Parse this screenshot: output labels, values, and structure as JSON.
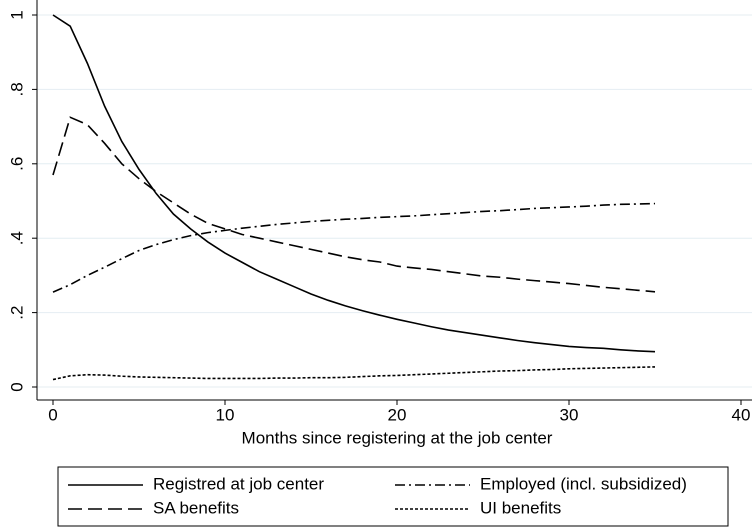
{
  "chart_data": {
    "type": "line",
    "xlabel": "Months since registering at the job center",
    "x": [
      0,
      1,
      2,
      3,
      4,
      5,
      6,
      7,
      8,
      9,
      10,
      11,
      12,
      13,
      14,
      15,
      16,
      17,
      18,
      19,
      20,
      21,
      22,
      23,
      24,
      25,
      26,
      27,
      28,
      29,
      30,
      31,
      32,
      33,
      34,
      35
    ],
    "series": [
      {
        "name": "Registred at job center",
        "color": "#000000",
        "dash": "none",
        "values": [
          1.0,
          0.97,
          0.87,
          0.755,
          0.66,
          0.585,
          0.52,
          0.465,
          0.425,
          0.39,
          0.36,
          0.335,
          0.31,
          0.29,
          0.27,
          0.25,
          0.233,
          0.218,
          0.205,
          0.193,
          0.182,
          0.172,
          0.162,
          0.153,
          0.146,
          0.139,
          0.132,
          0.125,
          0.119,
          0.114,
          0.109,
          0.106,
          0.104,
          0.1,
          0.097,
          0.095
        ]
      },
      {
        "name": "Employed (incl. subsidized)",
        "color": "#000000",
        "dash": "10 4 2 4",
        "values": [
          0.255,
          0.275,
          0.3,
          0.322,
          0.345,
          0.367,
          0.383,
          0.396,
          0.407,
          0.415,
          0.421,
          0.427,
          0.432,
          0.437,
          0.441,
          0.445,
          0.448,
          0.451,
          0.453,
          0.456,
          0.458,
          0.46,
          0.463,
          0.466,
          0.469,
          0.472,
          0.474,
          0.477,
          0.48,
          0.482,
          0.484,
          0.486,
          0.489,
          0.491,
          0.492,
          0.493
        ]
      },
      {
        "name": "SA benefits",
        "color": "#000000",
        "dash": "14 6",
        "values": [
          0.57,
          0.725,
          0.705,
          0.655,
          0.6,
          0.56,
          0.525,
          0.495,
          0.465,
          0.44,
          0.425,
          0.41,
          0.4,
          0.39,
          0.38,
          0.37,
          0.36,
          0.35,
          0.342,
          0.336,
          0.325,
          0.32,
          0.316,
          0.31,
          0.304,
          0.298,
          0.295,
          0.29,
          0.286,
          0.282,
          0.278,
          0.273,
          0.268,
          0.264,
          0.26,
          0.256
        ]
      },
      {
        "name": "UI benefits",
        "color": "#000000",
        "dash": "3 2",
        "values": [
          0.02,
          0.03,
          0.033,
          0.032,
          0.029,
          0.027,
          0.026,
          0.025,
          0.024,
          0.023,
          0.023,
          0.023,
          0.023,
          0.024,
          0.024,
          0.025,
          0.025,
          0.026,
          0.028,
          0.03,
          0.031,
          0.033,
          0.035,
          0.037,
          0.039,
          0.041,
          0.043,
          0.044,
          0.046,
          0.047,
          0.049,
          0.05,
          0.051,
          0.052,
          0.053,
          0.054
        ]
      }
    ],
    "xlim": [
      0,
      40
    ],
    "xticks": [
      0,
      10,
      20,
      30,
      40
    ],
    "ylim": [
      0,
      1
    ],
    "yticks": [
      0,
      {
        "value": 0.2,
        "label": ".2"
      },
      {
        "value": 0.4,
        "label": ".4"
      },
      {
        "value": 0.6,
        "label": ".6"
      },
      {
        "value": 0.8,
        "label": ".8"
      },
      1
    ],
    "grid": true,
    "legend": "bottom"
  }
}
